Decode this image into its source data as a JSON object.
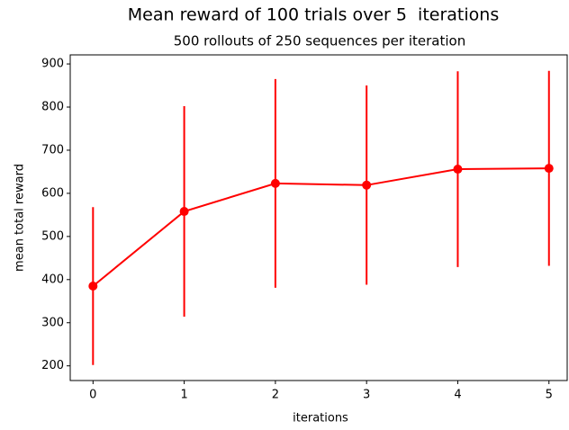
{
  "chart_data": {
    "type": "errorbar-line",
    "title": "Mean reward of 100 trials over 5  iterations",
    "subtitle": "500 rollouts of 250 sequences per iteration",
    "x_label": "iterations",
    "y_label": "mean total reward",
    "x": [
      0,
      1,
      2,
      3,
      4,
      5
    ],
    "series": [
      {
        "name": "mean",
        "color": "#ff0000",
        "values": [
          385,
          558,
          623,
          619,
          656,
          658
        ],
        "errors": [
          183,
          244,
          242,
          231,
          227,
          226
        ]
      }
    ],
    "xlim": [
      -0.25,
      5.2
    ],
    "ylim": [
      166,
      921
    ],
    "xticks": [
      0,
      1,
      2,
      3,
      4,
      5
    ],
    "yticks": [
      200,
      300,
      400,
      500,
      600,
      700,
      800,
      900
    ],
    "grid": false
  }
}
